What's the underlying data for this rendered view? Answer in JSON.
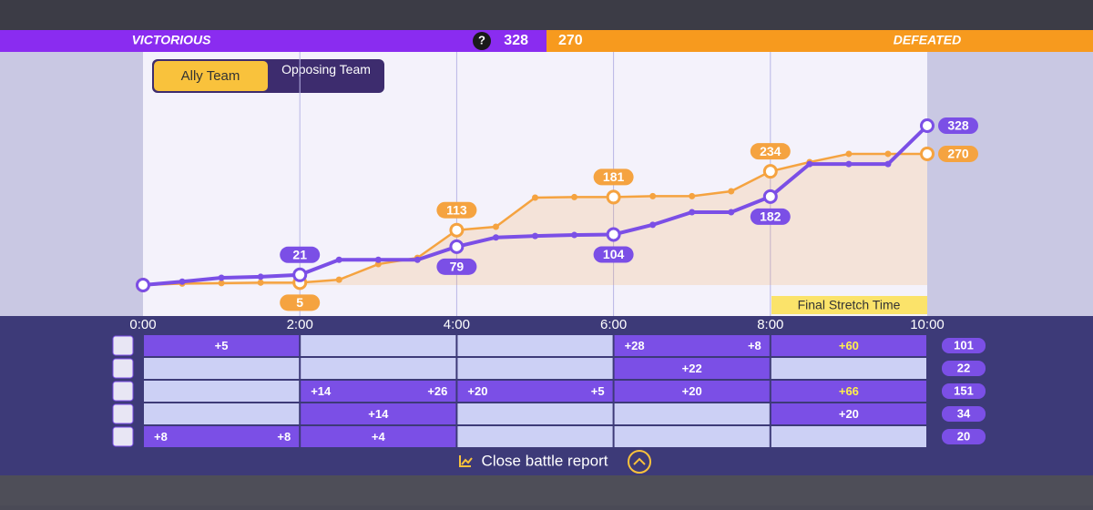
{
  "header": {
    "left_result": "VICTORIOUS",
    "icon": "?",
    "left_score": 328,
    "right_score": 270,
    "right_result": "DEFEATED"
  },
  "chart_data": {
    "type": "line",
    "x": [
      0,
      0.5,
      1,
      1.5,
      2,
      2.5,
      3,
      3.5,
      4,
      4.5,
      5,
      5.5,
      6,
      6.5,
      7,
      7.5,
      8,
      8.5,
      9,
      9.5,
      10
    ],
    "xticks": [
      {
        "value": 0,
        "label": "0:00"
      },
      {
        "value": 2,
        "label": "2:00"
      },
      {
        "value": 4,
        "label": "4:00"
      },
      {
        "value": 6,
        "label": "6:00"
      },
      {
        "value": 8,
        "label": "8:00"
      },
      {
        "value": 10,
        "label": "10:00"
      }
    ],
    "series": [
      {
        "name": "Ally Team",
        "color": "#7b4fe6",
        "values": [
          0,
          7,
          15,
          17,
          21,
          52,
          52,
          52,
          79,
          98,
          101,
          103,
          104,
          124,
          150,
          150,
          182,
          249,
          249,
          249,
          328
        ]
      },
      {
        "name": "Opposing Team",
        "color": "#f5a340",
        "values": [
          0,
          3,
          4,
          5,
          5,
          11,
          43,
          56,
          113,
          120,
          180,
          181,
          181,
          183,
          183,
          193,
          234,
          253,
          270,
          270,
          270
        ]
      }
    ],
    "annotation": "Final Stretch Time"
  },
  "table": {
    "rows": [
      {
        "cells": [
          [
            "+5"
          ],
          [],
          [],
          [
            "+28",
            "+8"
          ],
          {
            "entries": [
              "+60"
            ],
            "color": "#fff04a"
          }
        ],
        "total": 101
      },
      {
        "cells": [
          [],
          [],
          [],
          [
            "+22"
          ],
          []
        ],
        "total": 22
      },
      {
        "cells": [
          [],
          [
            "+14",
            "+26"
          ],
          [
            "+20",
            "+5"
          ],
          [
            "+20"
          ],
          {
            "entries": [
              "+66"
            ],
            "color": "#fff04a"
          }
        ],
        "total": 151
      },
      {
        "cells": [
          [],
          [
            "+14"
          ],
          [],
          [],
          [
            "+20"
          ]
        ],
        "total": 34
      },
      {
        "cells": [
          [
            "+8",
            "+8"
          ],
          [
            "+4"
          ],
          [],
          [],
          []
        ],
        "total": 20
      }
    ]
  },
  "footer": {
    "button": "Close battle report"
  }
}
